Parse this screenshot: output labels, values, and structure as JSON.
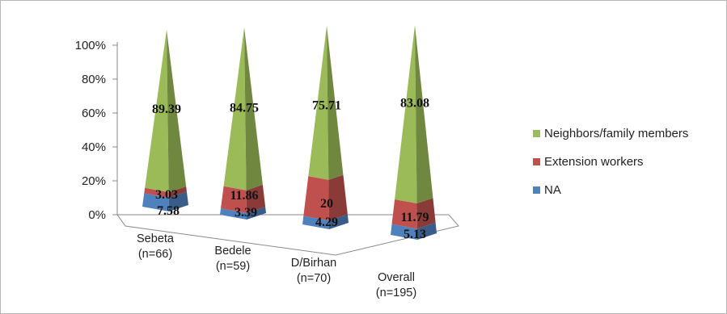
{
  "chart_data": {
    "type": "bar",
    "style": "3d-stacked-pyramid-percent",
    "title": "",
    "xlabel": "",
    "ylabel": "",
    "ylim": [
      0,
      100
    ],
    "yticks": [
      "0%",
      "20%",
      "40%",
      "60%",
      "80%",
      "100%"
    ],
    "categories": [
      {
        "name": "Sebeta",
        "n": "(n=66)"
      },
      {
        "name": "Bedele",
        "n": "(n=59)"
      },
      {
        "name": "D/Birhan",
        "n": "(n=70)"
      },
      {
        "name": "Overall",
        "n": "(n=195)"
      }
    ],
    "series": [
      {
        "name": "NA",
        "color": "#4f81bd",
        "values": [
          7.58,
          3.39,
          4.29,
          5.13
        ],
        "labels": [
          "7.58",
          "3.39",
          "4.29",
          "5.13"
        ]
      },
      {
        "name": "Extension workers",
        "color": "#c0504d",
        "values": [
          3.03,
          11.86,
          20,
          11.79
        ],
        "labels": [
          "3.03",
          "11.86",
          "20",
          "11.79"
        ]
      },
      {
        "name": "Neighbors/family members",
        "color": "#9bbb59",
        "values": [
          89.39,
          84.75,
          75.71,
          83.08
        ],
        "labels": [
          "89.39",
          "84.75",
          "75.71",
          "83.08"
        ]
      }
    ],
    "legend_order": [
      "Neighbors/family members",
      "Extension workers",
      "NA"
    ],
    "legend_position": "right",
    "grid": false
  }
}
